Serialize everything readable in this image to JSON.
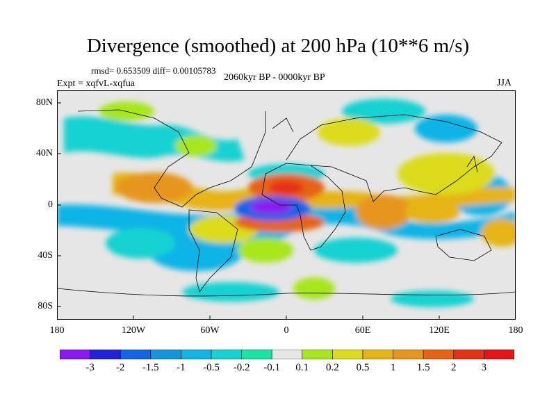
{
  "title": "Divergence (smoothed) at 200 hPa (10**6 m/s)",
  "stats_line": "rmsd= 0.653509 diff= 0.00105783",
  "experiment_label": "Expt = xqfvL-xqfua",
  "period_label": "2060kyr BP - 0000kyr BP",
  "season_label": "JJA",
  "lat_ticks": [
    "80N",
    "40N",
    "0",
    "40S",
    "80S"
  ],
  "lon_ticks": [
    "180",
    "120W",
    "60W",
    "0",
    "60E",
    "120E",
    "180"
  ],
  "colorbar": {
    "labels": [
      "-3",
      "-2",
      "-1.5",
      "-1",
      "-0.5",
      "-0.2",
      "-0.1",
      "0.1",
      "0.2",
      "0.5",
      "1",
      "1.5",
      "2",
      "3"
    ],
    "colors": [
      "#8b1af0",
      "#2222dd",
      "#1464e6",
      "#1496dc",
      "#10b4e6",
      "#16d2d2",
      "#16e6a0",
      "#e6e6e6",
      "#a8e61e",
      "#dcdc1e",
      "#e6b414",
      "#e6961e",
      "#e66414",
      "#e63214",
      "#e61414"
    ]
  }
}
